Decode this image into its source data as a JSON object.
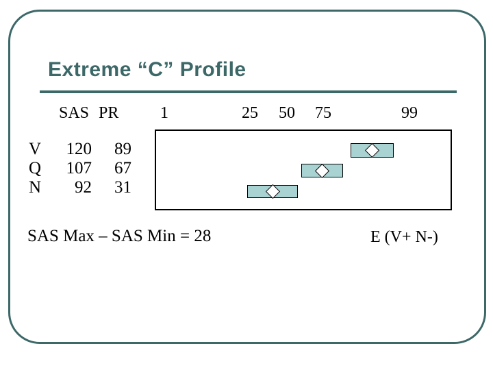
{
  "slide": {
    "title": "Extreme “C” Profile",
    "accent_color": "#3D6868",
    "background_color": "#FFFFFF"
  },
  "table": {
    "headers": {
      "sas": "SAS",
      "pr": "PR"
    },
    "rows": [
      {
        "label": "V",
        "sas": "120",
        "pr": "89"
      },
      {
        "label": "Q",
        "sas": "107",
        "pr": "67"
      },
      {
        "label": "N",
        "sas": "92",
        "pr": "31"
      }
    ]
  },
  "chart": {
    "ticks": [
      "1",
      "25",
      "50",
      "75",
      "99"
    ],
    "band_fill_color": "#A9D2D2",
    "marker_fill_color": "#FFFFFF",
    "frame_border_color": "#000000"
  },
  "chart_data": {
    "type": "scatter",
    "title": "Extreme “C” Profile",
    "categories": [
      "V",
      "Q",
      "N"
    ],
    "series": [
      {
        "name": "SAS",
        "values": [
          120,
          107,
          92
        ]
      },
      {
        "name": "PR",
        "values": [
          89,
          67,
          31
        ]
      }
    ],
    "x_axis": {
      "ticks": [
        1,
        25,
        50,
        75,
        99
      ],
      "scale": "percentile, normal-probability spacing"
    },
    "marker": "white diamond centered in shaded confidence band",
    "legend_position": "none",
    "grid": false,
    "annotations": [
      "SAS Max – SAS Min = 28",
      "E (V+ N-)"
    ]
  },
  "footer": {
    "formula": "SAS Max – SAS Min = 28",
    "annotation": "E (V+ N-)"
  }
}
